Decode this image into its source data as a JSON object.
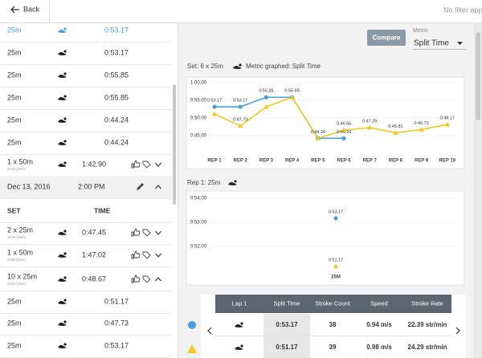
{
  "nav": {
    "back": "Back",
    "filter": "No filter app"
  },
  "sidebar": {
    "rows": [
      {
        "kind": "lap",
        "distance": "25m",
        "time": "0:53.17",
        "active": true
      },
      {
        "kind": "lap",
        "distance": "25m",
        "time": "0:53.17"
      },
      {
        "kind": "lap",
        "distance": "25m",
        "time": "0:55.85"
      },
      {
        "kind": "lap",
        "distance": "25m",
        "time": "0:55.85"
      },
      {
        "kind": "lap",
        "distance": "25m",
        "time": "0:44.24"
      },
      {
        "kind": "lap",
        "distance": "25m",
        "time": "0:44.24"
      },
      {
        "kind": "set",
        "distance": "1 x 50m",
        "pool": "SCM (25m)",
        "time": "1:42.90",
        "expanded": false
      },
      {
        "kind": "date",
        "date": "Dec 13, 2016",
        "time": "2:00 PM"
      },
      {
        "kind": "header",
        "set": "SET",
        "time": "TIME"
      },
      {
        "kind": "set",
        "distance": "2 x 25m",
        "pool": "SCM (25m)",
        "time": "0:47.45",
        "expanded": false
      },
      {
        "kind": "set",
        "distance": "1 x 50m",
        "pool": "SCM (25m)",
        "time": "1:47.02",
        "expanded": false
      },
      {
        "kind": "set",
        "distance": "10 x 25m",
        "pool": "SCM (25m)",
        "time": "0:48.67",
        "expanded": true
      },
      {
        "kind": "lap",
        "distance": "25m",
        "time": "0:51.17"
      },
      {
        "kind": "lap",
        "distance": "25m",
        "time": "0:47.73"
      },
      {
        "kind": "lap",
        "distance": "25m",
        "time": "0:53.17"
      }
    ]
  },
  "toolbar": {
    "compare": "Compare",
    "metric_label": "Metric",
    "metric_value": "Split Time"
  },
  "set_caption": {
    "prefix": "Set: 6 x 25m",
    "suffix": "Metric graphed: Split Time"
  },
  "rep_caption": "Rep 1: 25m",
  "chart_data": [
    {
      "type": "line",
      "categories": [
        "REP 1",
        "REP 2",
        "REP 3",
        "REP 4",
        "REP 5",
        "REP 6",
        "REP 7",
        "REP 8",
        "REP 9",
        "REP 10"
      ],
      "series": [
        {
          "color": "#4a9ee2",
          "marker": "circle",
          "values": [
            53.17,
            53.17,
            55.85,
            55.85,
            44.24,
            44.24,
            null,
            null,
            null,
            null
          ],
          "value_labels": [
            "0:53.17",
            "0:53.17",
            "0:55.85",
            "0:55.85",
            "0:44.24",
            "0:44.24",
            null,
            null,
            null,
            null
          ]
        },
        {
          "color": "#f4c61f",
          "marker": "triangle",
          "values": [
            51.17,
            47.73,
            53.17,
            55.85,
            44.24,
            46.56,
            47.29,
            45.81,
            46.72,
            48.17
          ],
          "value_labels": [
            null,
            "0:47.73",
            null,
            null,
            null,
            "0:46.56",
            "0:47.29",
            "0:45.81",
            "0:46.72",
            "0:48.17"
          ]
        }
      ],
      "ylim": [
        41.5,
        60
      ],
      "yticks": [
        {
          "value": 60,
          "label": "1:00.00"
        },
        {
          "value": 55,
          "label": "0:55.00"
        },
        {
          "value": 50,
          "label": "0:50.00"
        },
        {
          "value": 45,
          "label": "0:45.00"
        }
      ],
      "grid": true
    },
    {
      "type": "scatter",
      "categories": [
        "25M"
      ],
      "series": [
        {
          "color": "#4a9ee2",
          "marker": "circle",
          "values": [
            53.17
          ],
          "value_labels": [
            "0:53.17"
          ]
        },
        {
          "color": "#f4c61f",
          "marker": "triangle",
          "values": [
            51.17
          ],
          "value_labels": [
            "0:51.17"
          ]
        }
      ],
      "ylim": [
        51,
        54.17
      ],
      "yticks": [
        {
          "value": 54,
          "label": "0:54.00"
        },
        {
          "value": 53,
          "label": "0:53.00"
        },
        {
          "value": 52,
          "label": "0:52.00"
        }
      ],
      "grid": true
    }
  ],
  "lap_table": {
    "headers": [
      "Lap 1",
      "Split Time",
      "Stroke Count",
      "Speed",
      "Stroke Rate"
    ],
    "rows": [
      [
        "0:53.17",
        "38",
        "0.94 m/s",
        "22.39 str/min"
      ],
      [
        "0:51.17",
        "39",
        "0.98 m/s",
        "24.29 str/min"
      ]
    ]
  }
}
